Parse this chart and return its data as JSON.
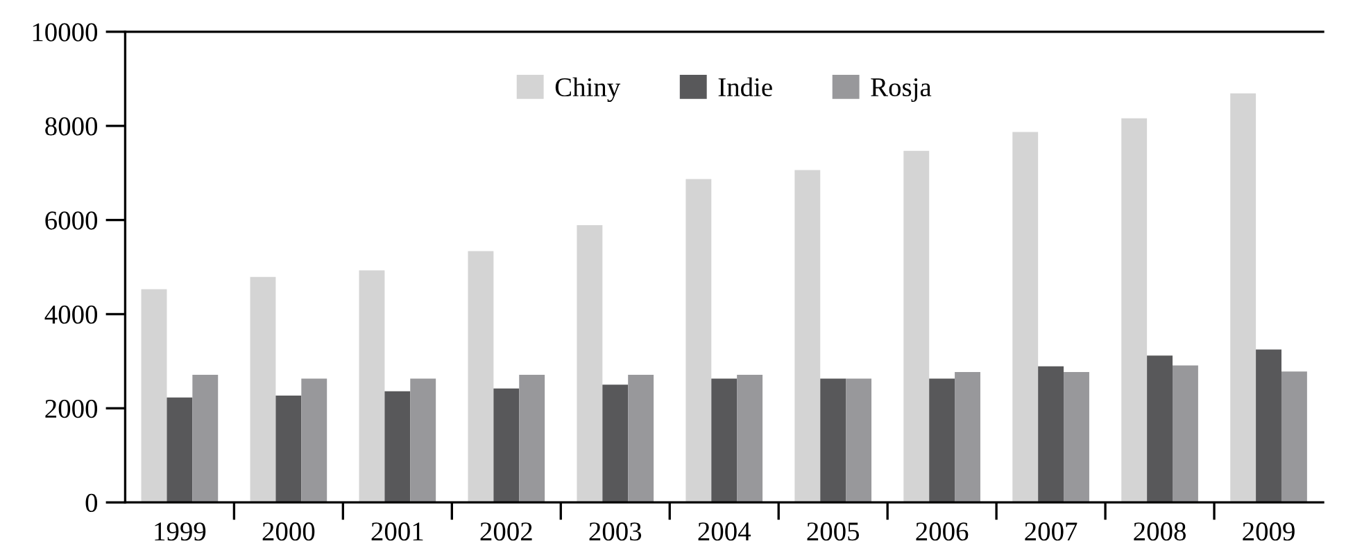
{
  "chart_data": {
    "type": "bar",
    "categories": [
      "1999",
      "2000",
      "2001",
      "2002",
      "2003",
      "2004",
      "2005",
      "2006",
      "2007",
      "2008",
      "2009"
    ],
    "series": [
      {
        "name": "Chiny",
        "color": "#d4d4d4",
        "values": [
          4530,
          4790,
          4930,
          5340,
          5890,
          6870,
          7060,
          7470,
          7870,
          8160,
          8690
        ]
      },
      {
        "name": "Indie",
        "color": "#58585a",
        "values": [
          2230,
          2270,
          2360,
          2420,
          2500,
          2630,
          2630,
          2630,
          2890,
          3120,
          3250
        ]
      },
      {
        "name": "Rosja",
        "color": "#98989b",
        "values": [
          2710,
          2630,
          2630,
          2710,
          2710,
          2710,
          2630,
          2770,
          2770,
          2910,
          2780
        ]
      }
    ],
    "ylim": [
      0,
      10000
    ],
    "yticks": [
      0,
      2000,
      4000,
      6000,
      8000,
      10000
    ],
    "grid": false,
    "legend": "top"
  }
}
